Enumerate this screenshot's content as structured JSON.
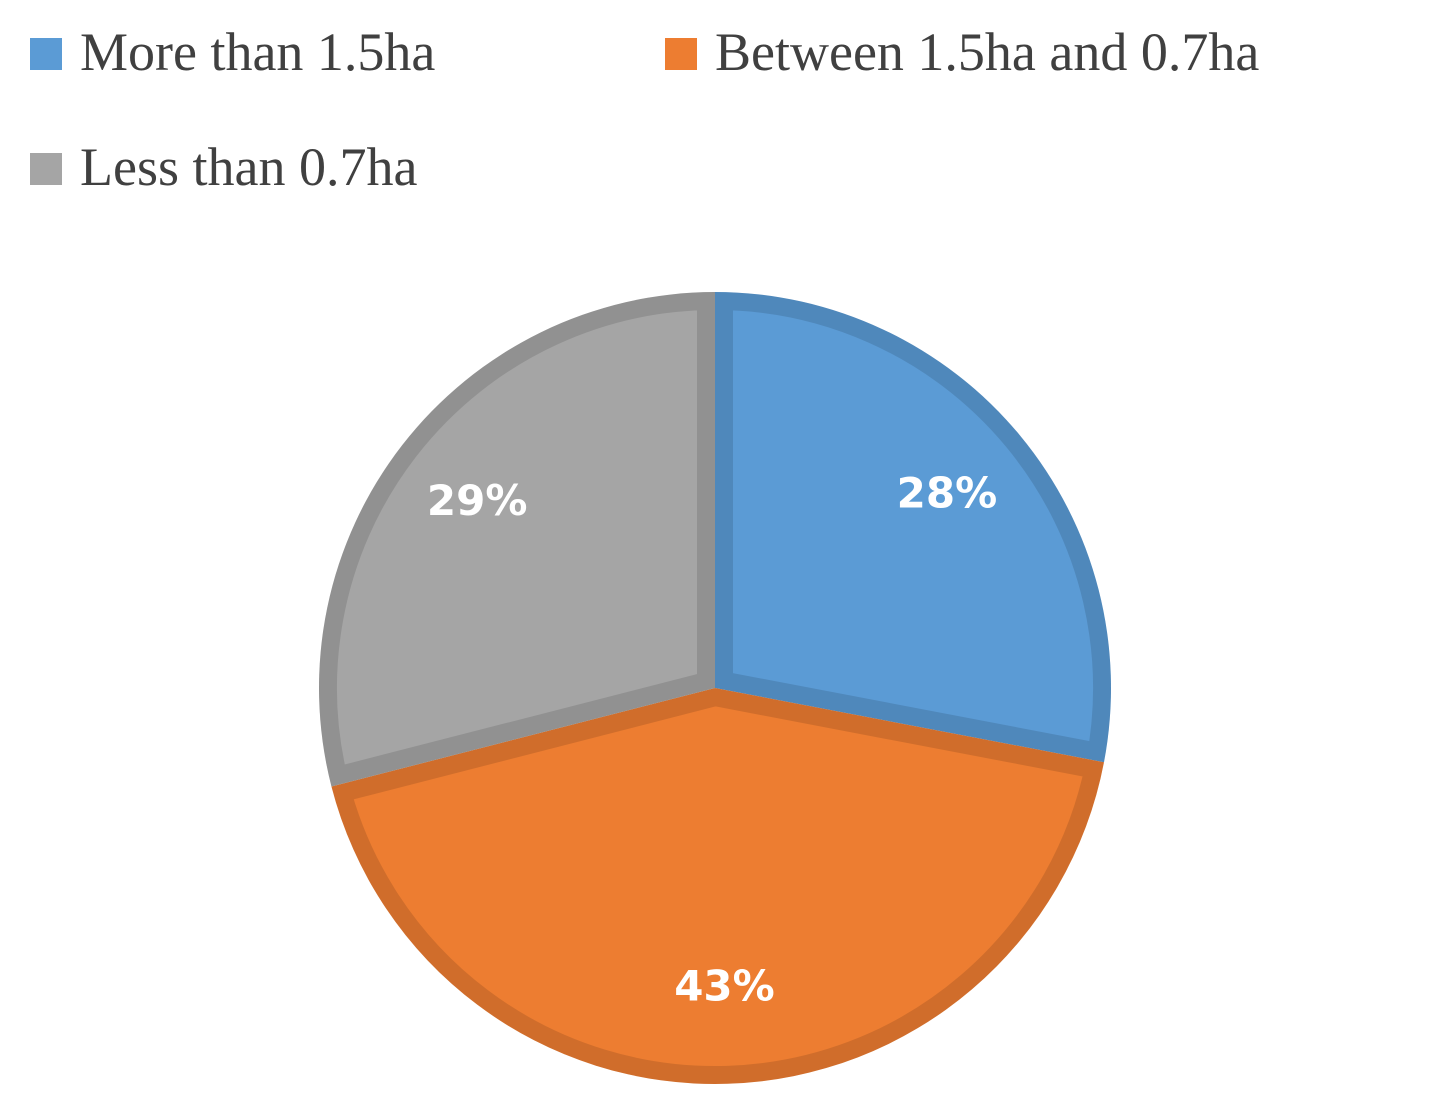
{
  "chart_data": {
    "type": "pie",
    "categories": [
      "More than 1.5ha",
      "Between 1.5ha and 0.7ha",
      "Less than 0.7ha"
    ],
    "values": [
      28,
      43,
      29
    ],
    "value_labels": [
      "28%",
      "43%",
      "29%"
    ],
    "colors": [
      "#5b9bd5",
      "#ed7d31",
      "#a5a5a5"
    ]
  }
}
